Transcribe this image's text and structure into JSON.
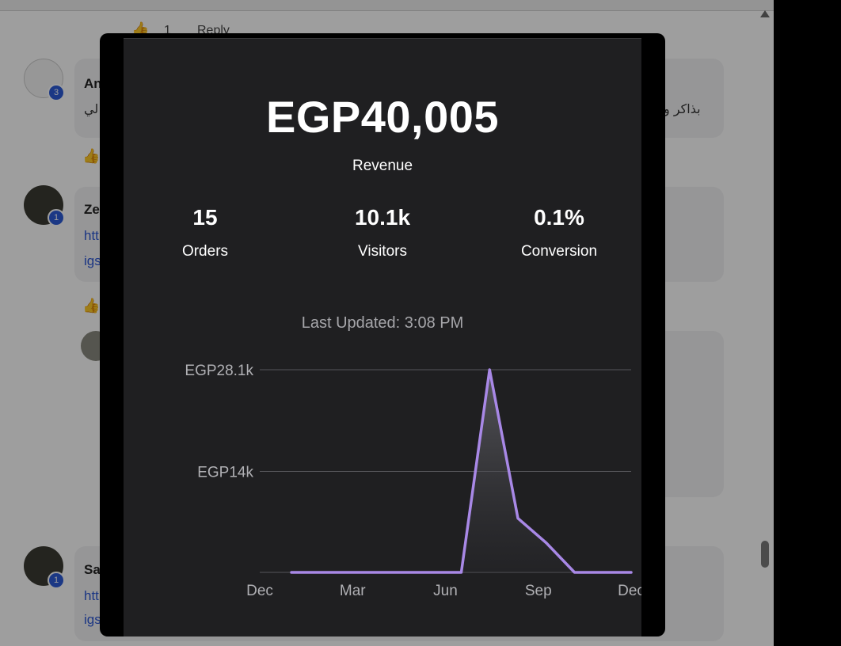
{
  "background": {
    "comment_initials": [
      "An",
      "Ze",
      "Sa"
    ],
    "link_fragments": [
      "htt",
      "igs",
      "htt",
      "igs"
    ],
    "arabic_fragments": [
      "بذاكر و",
      "لي"
    ],
    "reply_label": "Reply",
    "like_count": "1",
    "badges": [
      "3",
      "1",
      "1"
    ]
  },
  "summary": {
    "revenue_value": "EGP40,005",
    "revenue_label": "Revenue",
    "stats": [
      {
        "value": "15",
        "label": "Orders"
      },
      {
        "value": "10.1k",
        "label": "Visitors"
      },
      {
        "value": "0.1%",
        "label": "Conversion"
      }
    ],
    "last_updated": "Last Updated: 3:08 PM"
  },
  "chart_data": {
    "type": "area",
    "x_tick_labels": [
      "Dec",
      "Mar",
      "Jun",
      "Sep",
      "Dec"
    ],
    "y_tick_labels": [
      "EGP28.1k",
      "EGP14k"
    ],
    "y_tick_values": [
      28100,
      14000
    ],
    "ylim": [
      0,
      28100
    ],
    "grid": true,
    "series": [
      {
        "color": "#a888e6",
        "values": [
          0,
          0,
          0,
          0,
          0,
          0,
          0,
          28100,
          7500,
          4100,
          0,
          0,
          0
        ]
      }
    ]
  }
}
